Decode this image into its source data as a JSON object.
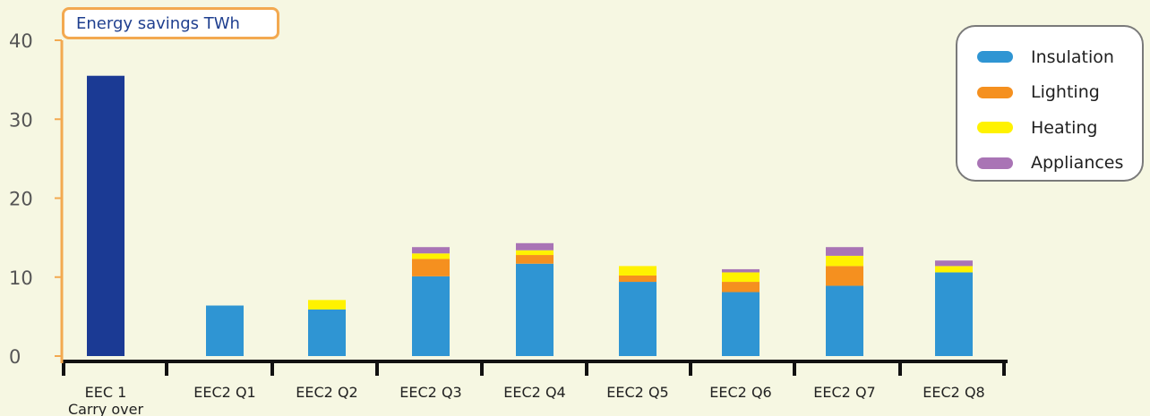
{
  "chart_data": {
    "type": "bar",
    "stacked": true,
    "title": "Energy savings TWh",
    "categories": [
      "EEC 1\nCarry over",
      "EEC2 Q1",
      "EEC2 Q2",
      "EEC2 Q3",
      "EEC2 Q4",
      "EEC2 Q5",
      "EEC2 Q6",
      "EEC2 Q7",
      "EEC2 Q8"
    ],
    "series": [
      {
        "name": "Insulation",
        "color": "#2f95d3",
        "values": [
          35.5,
          6.4,
          5.9,
          10.1,
          11.7,
          9.4,
          8.1,
          8.9,
          10.6
        ]
      },
      {
        "name": "Lighting",
        "color": "#f5901f",
        "values": [
          0,
          0,
          0,
          2.2,
          1.1,
          0.8,
          1.3,
          2.5,
          0
        ]
      },
      {
        "name": "Heating",
        "color": "#fff200",
        "values": [
          0,
          0,
          1.2,
          0.7,
          0.6,
          1.2,
          1.2,
          1.3,
          0.8
        ]
      },
      {
        "name": "Appliances",
        "color": "#a974b5",
        "values": [
          0,
          0,
          0,
          0.8,
          0.9,
          0,
          0.4,
          1.1,
          0.7
        ]
      }
    ],
    "highlight": {
      "category_index": 0,
      "color": "#1b3a94"
    },
    "yticks": [
      0,
      10,
      20,
      30,
      40
    ],
    "ylim": [
      0,
      40
    ],
    "grid": false,
    "legend_position": "top-right",
    "axis_color": "#f3a950"
  }
}
